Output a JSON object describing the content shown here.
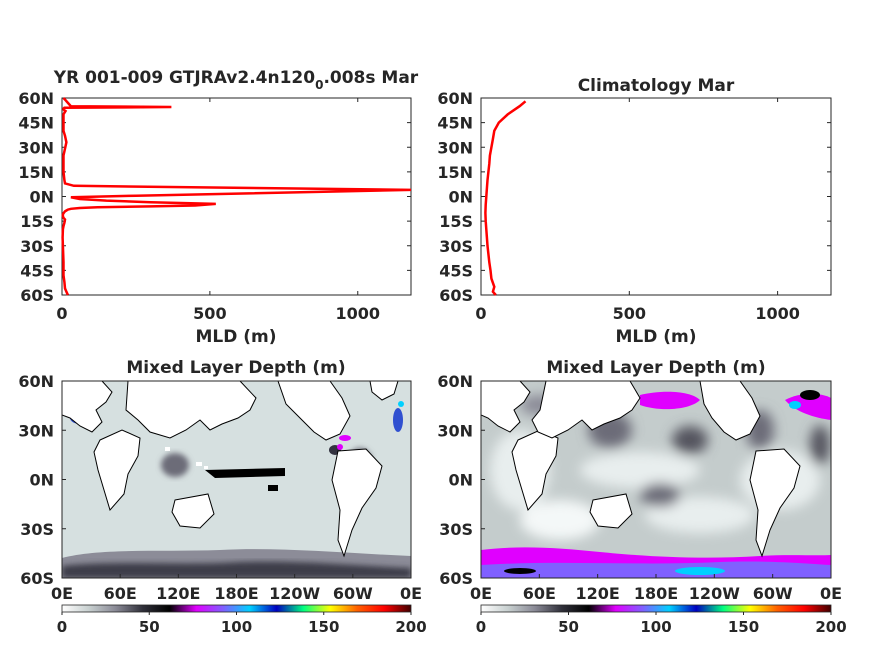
{
  "chart_data": [
    {
      "type": "line",
      "title": "YR 001-009 GTJRAv2.4n120",
      "title_sub": "0",
      "title_end": ".008s Mar",
      "xlabel": "MLD (m)",
      "ylabel": "",
      "xlim": [
        0,
        1180
      ],
      "ylim": [
        -60,
        60
      ],
      "xticks": [
        0,
        500,
        1000
      ],
      "xtick_labels": [
        "0",
        "500",
        "1000"
      ],
      "yticks": [
        60,
        45,
        30,
        15,
        0,
        -15,
        -30,
        -45,
        -60
      ],
      "ytick_labels": [
        "60N",
        "45N",
        "30N",
        "15N",
        "0N",
        "15S",
        "30S",
        "45S",
        "60S"
      ],
      "color": "#ff0000",
      "series": [
        {
          "x": [
            20,
            15,
            10,
            8,
            5,
            5,
            5,
            4,
            3,
            2,
            3,
            5,
            8,
            10,
            5,
            3,
            3,
            4,
            6,
            8,
            10,
            15,
            20,
            30,
            60,
            120,
            300,
            450,
            520,
            300,
            150,
            60,
            30,
            250,
            1180,
            40,
            10,
            8,
            5,
            5,
            15,
            10,
            5,
            5,
            5,
            8,
            12,
            8,
            5,
            5,
            8,
            370,
            30,
            20,
            10,
            5
          ],
          "y": [
            -60,
            -58,
            -56,
            -52,
            -48,
            -45,
            -40,
            -35,
            -30,
            -25,
            -20,
            -18,
            -16,
            -14,
            -13,
            -12,
            -11,
            -10.5,
            -10,
            -9.5,
            -9,
            -8.5,
            -8,
            -7.5,
            -7,
            -6.5,
            -6,
            -5.5,
            -4.5,
            -3.5,
            -2.5,
            -1.5,
            -0.5,
            0.5,
            4,
            6.5,
            8,
            10,
            15,
            25,
            33,
            37,
            40,
            45,
            50,
            51,
            52,
            52.5,
            53,
            53.5,
            54,
            54.5,
            55,
            57,
            59,
            60
          ]
        }
      ]
    },
    {
      "type": "line",
      "title": "Climatology Mar",
      "xlabel": "MLD (m)",
      "ylabel": "",
      "xlim": [
        0,
        1180
      ],
      "ylim": [
        -60,
        60
      ],
      "xticks": [
        0,
        500,
        1000
      ],
      "xtick_labels": [
        "0",
        "500",
        "1000"
      ],
      "yticks": [
        60,
        45,
        30,
        15,
        0,
        -15,
        -30,
        -45,
        -60
      ],
      "ytick_labels": [
        "60N",
        "45N",
        "30N",
        "15N",
        "0N",
        "15S",
        "30S",
        "45S",
        "60S"
      ],
      "color": "#ff0000",
      "series": [
        {
          "x": [
            50,
            40,
            45,
            35,
            32,
            28,
            25,
            22,
            20,
            18,
            16,
            15,
            16,
            18,
            20,
            22,
            25,
            28,
            30,
            35,
            40,
            45,
            60,
            90,
            130,
            150
          ],
          "y": [
            -60,
            -58,
            -55,
            -50,
            -45,
            -40,
            -35,
            -30,
            -25,
            -20,
            -15,
            -10,
            -5,
            0,
            5,
            10,
            15,
            20,
            25,
            30,
            35,
            40,
            45,
            50,
            55,
            58
          ]
        }
      ]
    },
    {
      "type": "heatmap",
      "title": "Mixed Layer Depth (m)",
      "xtick_labels": [
        "0E",
        "60E",
        "120E",
        "180E",
        "120W",
        "60W",
        "0E"
      ],
      "ytick_labels": [
        "60N",
        "30N",
        "0N",
        "30S",
        "60S"
      ],
      "colorbar": {
        "range": [
          0,
          200
        ],
        "ticks": [
          0,
          50,
          100,
          150,
          200
        ],
        "tick_labels": [
          "0",
          "50",
          "100",
          "150",
          "200"
        ],
        "stops": [
          "#ffffff",
          "#c8d0d0",
          "#8a8a96",
          "#30303a",
          "#000000",
          "#e000ff",
          "#8060ff",
          "#00d0ff",
          "#0000c0",
          "#00ff80",
          "#ffff00",
          "#ff6000",
          "#ff0000",
          "#400000"
        ]
      }
    },
    {
      "type": "heatmap",
      "title": "Mixed Layer Depth (m)",
      "xtick_labels": [
        "0E",
        "60E",
        "120E",
        "180E",
        "120W",
        "60W",
        "0E"
      ],
      "ytick_labels": [
        "60N",
        "30N",
        "0N",
        "30S",
        "60S"
      ],
      "colorbar": {
        "range": [
          0,
          200
        ],
        "ticks": [
          0,
          50,
          100,
          150,
          200
        ],
        "tick_labels": [
          "0",
          "50",
          "100",
          "150",
          "200"
        ],
        "stops": [
          "#ffffff",
          "#c8d0d0",
          "#8a8a96",
          "#30303a",
          "#000000",
          "#e000ff",
          "#8060ff",
          "#00d0ff",
          "#0000c0",
          "#00ff80",
          "#ffff00",
          "#ff6000",
          "#ff0000",
          "#400000"
        ]
      }
    }
  ]
}
